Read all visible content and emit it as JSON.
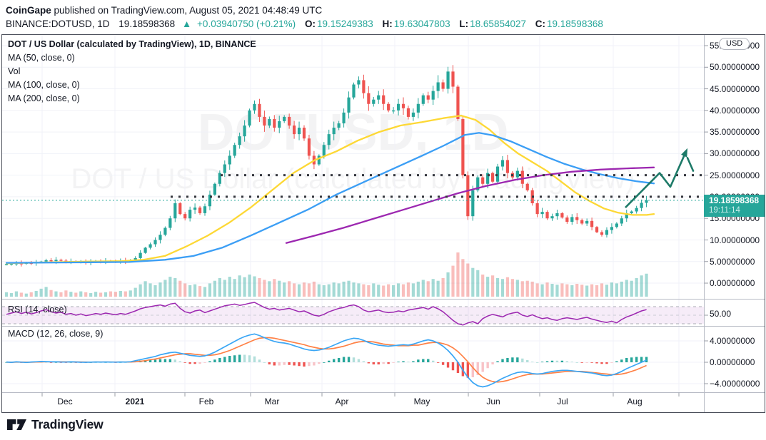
{
  "header": {
    "publisher": "CoinGape",
    "published_rest": " published on TradingView.com, August 05, 2021 04:48:49 UTC",
    "symbol": "BINANCE:DOTUSD, 1D",
    "last_price": "19.18598368",
    "change_arrow": "▲",
    "change_text": "+0.03940750 (+0.21%)",
    "ohlc": [
      {
        "label": "O:",
        "value": "19.15249383"
      },
      {
        "label": "H:",
        "value": "19.63047803"
      },
      {
        "label": "L:",
        "value": "18.65854027"
      },
      {
        "label": "C:",
        "value": "19.18598368"
      }
    ]
  },
  "legend": {
    "title": "DOT / US Dollar (calculated by TradingView), 1D, BINANCE",
    "items": [
      "MA (50, close, 0)",
      "Vol",
      "MA (100, close, 0)",
      "MA (200, close, 0)"
    ]
  },
  "indicators": {
    "rsi_label": "RSI (14, close)",
    "macd_label": "MACD (12, 26, close, 9)"
  },
  "axes": {
    "price_labels": [
      "55.00000000",
      "50.00000000",
      "45.00000000",
      "40.00000000",
      "35.00000000",
      "30.00000000",
      "25.00000000",
      "20.00000000",
      "15.00000000",
      "10.00000000",
      "5.00000000",
      "0.00000000"
    ],
    "rsi_label_50": "50.00",
    "macd_labels": [
      "4.00000000",
      "0.00000000",
      "−4.00000000"
    ],
    "time_labels": [
      "Dec",
      "2021",
      "Feb",
      "Mar",
      "Apr",
      "May",
      "Jun",
      "Jul",
      "Aug"
    ],
    "currency_button": "USD"
  },
  "price_badge": {
    "price": "19.18598368",
    "countdown": "19:11:14"
  },
  "watermark": {
    "line1": "DOTUSD, 1D",
    "line2": "DOT / US Dollar (calculated by TradingView)"
  },
  "footer": {
    "brand": "TradingView"
  },
  "colors": {
    "up": "#26a69a",
    "down": "#ef5350",
    "vol_up": "rgba(38,166,154,0.42)",
    "vol_down": "rgba(239,83,80,0.38)",
    "ma50": "#fdd835",
    "ma100": "#3b9ef5",
    "ma200": "#9c27b0",
    "rsi": "#9c27b0",
    "macd_line": "#3aa6f5",
    "macd_signal": "#ff8146",
    "hist_pos": "#26a69a",
    "hist_pos_light": "#b2dfdb",
    "hist_neg": "#ef5350",
    "hist_neg_light": "#f8c3c7",
    "arrow": "#1d7a68",
    "badge_bg": "#26a69a",
    "dotted_level": "#36383f",
    "grid": "#f0f2f8"
  },
  "chart_data": {
    "type": "candlestick",
    "symbol": "DOTUSD",
    "exchange": "BINANCE",
    "interval": "1D",
    "x_range": "Nov 2020 – Aug 2021",
    "ylim": [
      0,
      55
    ],
    "rsi_guides": [
      70,
      50,
      30
    ],
    "macd_grid": [
      4,
      0,
      -4
    ],
    "current_price": 19.18598368,
    "close": [
      4.4,
      4.5,
      4.6,
      4.5,
      4.7,
      4.6,
      4.8,
      5.0,
      5.3,
      5.1,
      5.4,
      5.2,
      5.0,
      5.1,
      4.9,
      5.0,
      4.8,
      4.9,
      5.1,
      5.0,
      5.2,
      5.1,
      5.0,
      5.2,
      5.1,
      5.3,
      5.8,
      7.0,
      8.2,
      9.0,
      10.0,
      11.2,
      12.8,
      15.0,
      18.5,
      16.0,
      15.0,
      17.0,
      17.5,
      16.2,
      17.8,
      20.5,
      23.0,
      25.5,
      27.5,
      29.5,
      32.0,
      34.0,
      36.5,
      40.0,
      41.5,
      38.5,
      36.5,
      38.0,
      36.0,
      37.5,
      38.5,
      36.5,
      34.5,
      36.0,
      33.5,
      29.5,
      27.5,
      29.5,
      32.0,
      34.5,
      36.0,
      37.0,
      39.5,
      43.0,
      46.0,
      47.0,
      44.0,
      41.5,
      42.5,
      43.5,
      41.5,
      40.0,
      40.0,
      41.5,
      40.5,
      38.5,
      39.5,
      41.5,
      43.5,
      42.5,
      44.5,
      46.5,
      45.0,
      49.0,
      45.5,
      38.0,
      25.0,
      15.5,
      21.5,
      24.5,
      23.0,
      25.5,
      23.5,
      27.0,
      28.5,
      25.5,
      24.5,
      26.0,
      23.0,
      21.5,
      18.5,
      16.0,
      16.5,
      15.0,
      15.5,
      16.2,
      15.2,
      14.2,
      15.3,
      14.6,
      13.8,
      14.4,
      13.0,
      11.8,
      11.2,
      12.3,
      13.0,
      13.8,
      15.0,
      16.2,
      16.6,
      17.4,
      18.6,
      19.19
    ],
    "volume_rel": [
      0.1,
      0.08,
      0.12,
      0.09,
      0.07,
      0.1,
      0.13,
      0.18,
      0.22,
      0.15,
      0.12,
      0.1,
      0.14,
      0.11,
      0.09,
      0.12,
      0.1,
      0.08,
      0.11,
      0.09,
      0.1,
      0.12,
      0.11,
      0.13,
      0.12,
      0.14,
      0.2,
      0.28,
      0.35,
      0.3,
      0.26,
      0.32,
      0.38,
      0.45,
      0.42,
      0.36,
      0.3,
      0.26,
      0.28,
      0.24,
      0.22,
      0.3,
      0.36,
      0.42,
      0.38,
      0.45,
      0.4,
      0.48,
      0.44,
      0.5,
      0.46,
      0.42,
      0.38,
      0.35,
      0.4,
      0.36,
      0.32,
      0.35,
      0.3,
      0.28,
      0.32,
      0.3,
      0.34,
      0.28,
      0.26,
      0.28,
      0.32,
      0.3,
      0.34,
      0.36,
      0.32,
      0.3,
      0.28,
      0.26,
      0.3,
      0.27,
      0.25,
      0.28,
      0.26,
      0.3,
      0.28,
      0.32,
      0.3,
      0.34,
      0.38,
      0.35,
      0.4,
      0.36,
      0.42,
      0.55,
      0.7,
      1.0,
      0.85,
      0.75,
      0.65,
      0.6,
      0.5,
      0.45,
      0.48,
      0.42,
      0.4,
      0.44,
      0.4,
      0.38,
      0.35,
      0.36,
      0.34,
      0.3,
      0.28,
      0.32,
      0.29,
      0.27,
      0.3,
      0.28,
      0.26,
      0.29,
      0.27,
      0.25,
      0.28,
      0.26,
      0.3,
      0.27,
      0.32,
      0.3,
      0.34,
      0.38,
      0.36,
      0.42,
      0.48,
      0.52
    ],
    "ma50": [
      [
        8,
        4.6
      ],
      [
        60,
        4.8
      ],
      [
        120,
        5.0
      ],
      [
        170,
        5.1
      ],
      [
        200,
        5.4
      ],
      [
        230,
        6.3
      ],
      [
        260,
        8.5
      ],
      [
        290,
        11.0
      ],
      [
        320,
        14.0
      ],
      [
        350,
        17.5
      ],
      [
        380,
        21.5
      ],
      [
        410,
        25.5
      ],
      [
        440,
        28.5
      ],
      [
        470,
        30.5
      ],
      [
        500,
        33.0
      ],
      [
        530,
        35.0
      ],
      [
        560,
        36.5
      ],
      [
        590,
        37.3
      ],
      [
        620,
        38.2
      ],
      [
        645,
        38.8
      ],
      [
        665,
        37.8
      ],
      [
        685,
        35.5
      ],
      [
        705,
        32.5
      ],
      [
        725,
        30.0
      ],
      [
        745,
        28.0
      ],
      [
        765,
        26.0
      ],
      [
        785,
        23.5
      ],
      [
        805,
        21.0
      ],
      [
        825,
        19.0
      ],
      [
        845,
        17.3
      ],
      [
        865,
        16.3
      ],
      [
        885,
        15.8
      ],
      [
        905,
        15.8
      ],
      [
        915,
        16.0
      ]
    ],
    "ma100": [
      [
        8,
        4.7
      ],
      [
        100,
        4.8
      ],
      [
        180,
        4.9
      ],
      [
        230,
        5.4
      ],
      [
        270,
        6.3
      ],
      [
        310,
        8.2
      ],
      [
        350,
        11.0
      ],
      [
        390,
        14.0
      ],
      [
        430,
        17.0
      ],
      [
        470,
        20.5
      ],
      [
        510,
        23.5
      ],
      [
        550,
        26.5
      ],
      [
        590,
        29.5
      ],
      [
        620,
        31.8
      ],
      [
        650,
        34.3
      ],
      [
        670,
        34.8
      ],
      [
        690,
        34.2
      ],
      [
        715,
        32.8
      ],
      [
        740,
        31.0
      ],
      [
        765,
        29.2
      ],
      [
        790,
        27.6
      ],
      [
        815,
        26.3
      ],
      [
        840,
        25.2
      ],
      [
        865,
        24.3
      ],
      [
        890,
        23.6
      ],
      [
        915,
        23.1
      ]
    ],
    "ma200": [
      [
        400,
        9.3
      ],
      [
        440,
        11.0
      ],
      [
        480,
        12.8
      ],
      [
        520,
        14.8
      ],
      [
        560,
        16.8
      ],
      [
        600,
        18.8
      ],
      [
        640,
        20.8
      ],
      [
        680,
        22.5
      ],
      [
        720,
        23.9
      ],
      [
        760,
        25.0
      ],
      [
        800,
        25.8
      ],
      [
        840,
        26.3
      ],
      [
        880,
        26.6
      ],
      [
        915,
        26.8
      ]
    ],
    "rsi": [
      52,
      55,
      58,
      54,
      57,
      53,
      56,
      60,
      63,
      58,
      55,
      57,
      52,
      54,
      50,
      53,
      49,
      51,
      54,
      52,
      55,
      53,
      51,
      54,
      52,
      56,
      60,
      65,
      68,
      70,
      72,
      74,
      71,
      76,
      78,
      66,
      58,
      55,
      60,
      62,
      56,
      60,
      64,
      68,
      72,
      74,
      76,
      73,
      75,
      78,
      80,
      74,
      68,
      64,
      66,
      62,
      64,
      66,
      62,
      58,
      60,
      55,
      50,
      48,
      52,
      58,
      62,
      66,
      68,
      72,
      74,
      70,
      62,
      58,
      60,
      62,
      58,
      56,
      57,
      60,
      58,
      62,
      64,
      66,
      68,
      64,
      70,
      65,
      58,
      48,
      38,
      30,
      27,
      32,
      35,
      30,
      42,
      48,
      52,
      49,
      46,
      52,
      55,
      57,
      50,
      47,
      51,
      46,
      42,
      44,
      40,
      38,
      42,
      44,
      42,
      40,
      43,
      45,
      41,
      38,
      35,
      33,
      36,
      32,
      40,
      46,
      50,
      55,
      60,
      63
    ],
    "macd": [
      0.05,
      -0.02,
      0.08,
      0.03,
      -0.04,
      0.06,
      0.1,
      0.15,
      0.12,
      0.08,
      0.1,
      0.06,
      0.04,
      0.08,
      0.05,
      0.02,
      0.0,
      0.03,
      0.06,
      0.04,
      0.05,
      0.04,
      0.03,
      0.05,
      0.04,
      0.1,
      0.3,
      0.5,
      0.7,
      0.9,
      1.1,
      1.4,
      1.6,
      1.8,
      1.9,
      1.7,
      1.5,
      1.3,
      1.2,
      1.1,
      1.2,
      1.5,
      1.9,
      2.4,
      2.9,
      3.4,
      3.9,
      4.4,
      4.8,
      5.1,
      5.3,
      5.0,
      4.6,
      4.2,
      3.9,
      3.7,
      3.6,
      3.4,
      3.1,
      2.8,
      2.5,
      2.3,
      2.2,
      2.3,
      2.5,
      2.8,
      3.2,
      3.6,
      4.0,
      4.3,
      4.5,
      4.4,
      4.1,
      3.7,
      3.4,
      3.2,
      3.1,
      3.0,
      3.1,
      3.2,
      3.3,
      3.2,
      3.4,
      3.7,
      4.0,
      4.2,
      4.0,
      3.6,
      3.0,
      2.2,
      1.2,
      0.0,
      -1.5,
      -2.8,
      -3.8,
      -4.4,
      -4.6,
      -4.4,
      -4.0,
      -3.5,
      -3.0,
      -2.6,
      -2.2,
      -1.9,
      -1.8,
      -1.9,
      -2.1,
      -2.2,
      -2.1,
      -1.9,
      -1.7,
      -1.6,
      -1.5,
      -1.5,
      -1.6,
      -1.7,
      -1.8,
      -1.9,
      -2.0,
      -2.2,
      -2.4,
      -2.5,
      -2.4,
      -2.1,
      -1.7,
      -1.2,
      -0.8,
      -0.4,
      0.0,
      0.4
    ],
    "macd_signal": [
      0.03,
      0.0,
      0.03,
      0.04,
      0.02,
      0.02,
      0.04,
      0.07,
      0.09,
      0.09,
      0.09,
      0.08,
      0.07,
      0.07,
      0.06,
      0.05,
      0.04,
      0.03,
      0.04,
      0.04,
      0.04,
      0.04,
      0.04,
      0.04,
      0.04,
      0.05,
      0.1,
      0.2,
      0.3,
      0.5,
      0.6,
      0.8,
      1.0,
      1.2,
      1.4,
      1.5,
      1.6,
      1.6,
      1.5,
      1.4,
      1.3,
      1.3,
      1.4,
      1.6,
      1.9,
      2.2,
      2.6,
      3.0,
      3.4,
      3.8,
      4.2,
      4.5,
      4.6,
      4.6,
      4.5,
      4.3,
      4.1,
      3.9,
      3.7,
      3.5,
      3.3,
      3.0,
      2.8,
      2.6,
      2.5,
      2.5,
      2.6,
      2.8,
      3.0,
      3.3,
      3.6,
      3.8,
      3.9,
      3.9,
      3.8,
      3.6,
      3.4,
      3.3,
      3.2,
      3.1,
      3.1,
      3.1,
      3.2,
      3.2,
      3.4,
      3.6,
      3.7,
      3.7,
      3.5,
      3.2,
      2.7,
      2.0,
      1.1,
      0.1,
      -1.0,
      -2.0,
      -2.8,
      -3.3,
      -3.6,
      -3.7,
      -3.6,
      -3.4,
      -3.1,
      -2.8,
      -2.5,
      -2.3,
      -2.2,
      -2.2,
      -2.2,
      -2.1,
      -2.0,
      -1.9,
      -1.8,
      -1.7,
      -1.7,
      -1.7,
      -1.7,
      -1.8,
      -1.9,
      -2.0,
      -2.1,
      -2.2,
      -2.3,
      -2.3,
      -2.2,
      -2.0,
      -1.7,
      -1.4,
      -1.0,
      -0.6
    ],
    "dotted_levels": [
      {
        "price": 25.0,
        "x_start": 308
      },
      {
        "price": 20.0,
        "x_start": 238
      }
    ],
    "projection_arrow": [
      [
        875,
        17.5
      ],
      [
        923,
        25.5
      ],
      [
        938,
        22.3
      ],
      [
        960,
        30.5
      ]
    ],
    "projection_tail": [
      [
        962,
        29.0
      ],
      [
        970,
        26.0
      ]
    ],
    "month_grid_x": [
      58,
      160,
      258,
      350,
      450,
      552,
      655,
      755,
      858,
      950
    ]
  }
}
